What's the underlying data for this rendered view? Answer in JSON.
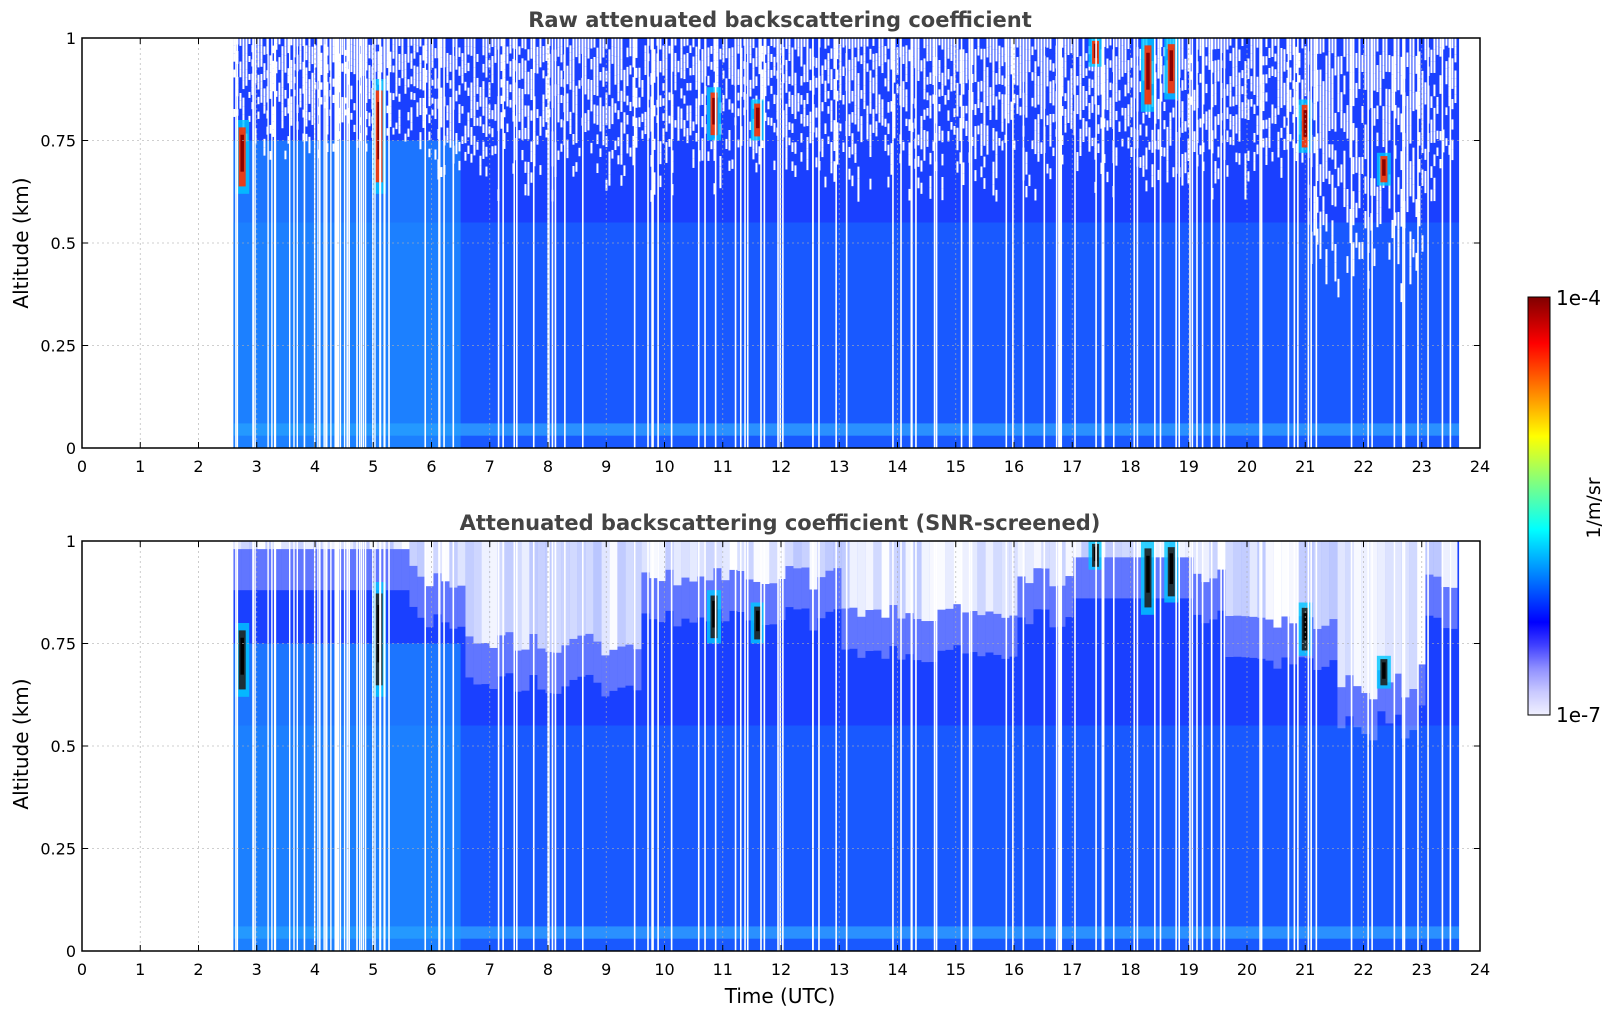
{
  "chart_data": [
    {
      "type": "heatmap",
      "title": "Raw attenuated backscattering coefficient",
      "ylabel": "Altitude (km)",
      "xlabel": "",
      "xlim": [
        0,
        24
      ],
      "ylim": [
        0,
        1
      ],
      "x_ticks": [
        "0",
        "1",
        "2",
        "3",
        "4",
        "5",
        "6",
        "7",
        "8",
        "9",
        "10",
        "11",
        "12",
        "13",
        "14",
        "15",
        "16",
        "17",
        "18",
        "19",
        "20",
        "21",
        "22",
        "23",
        "24"
      ],
      "y_ticks": [
        "0",
        "0.25",
        "0.5",
        "0.75",
        "1"
      ],
      "data_time_range": [
        2.6,
        23.65
      ],
      "grid": true,
      "cloud_features": [
        {
          "t": 2.75,
          "alt_range": [
            0.62,
            0.8
          ]
        },
        {
          "t": 5.1,
          "alt_range": [
            0.62,
            0.9
          ]
        },
        {
          "t": 10.85,
          "alt_range": [
            0.75,
            0.88
          ]
        },
        {
          "t": 11.6,
          "alt_range": [
            0.75,
            0.85
          ]
        },
        {
          "t": 17.4,
          "alt_range": [
            0.93,
            1.0
          ]
        },
        {
          "t": 18.3,
          "alt_range": [
            0.82,
            1.0
          ]
        },
        {
          "t": 18.7,
          "alt_range": [
            0.85,
            1.0
          ]
        },
        {
          "t": 21.0,
          "alt_range": [
            0.72,
            0.85
          ]
        },
        {
          "t": 22.35,
          "alt_range": [
            0.64,
            0.72
          ]
        }
      ]
    },
    {
      "type": "heatmap",
      "title": "Attenuated backscattering coefficient (SNR-screened)",
      "ylabel": "Altitude (km)",
      "xlabel": "Time (UTC)",
      "xlim": [
        0,
        24
      ],
      "ylim": [
        0,
        1
      ],
      "x_ticks": [
        "0",
        "1",
        "2",
        "3",
        "4",
        "5",
        "6",
        "7",
        "8",
        "9",
        "10",
        "11",
        "12",
        "13",
        "14",
        "15",
        "16",
        "17",
        "18",
        "19",
        "20",
        "21",
        "22",
        "23",
        "24"
      ],
      "y_ticks": [
        "0",
        "0.25",
        "0.5",
        "0.75",
        "1"
      ],
      "data_time_range": [
        2.6,
        23.65
      ],
      "grid": true
    }
  ],
  "colorbar": {
    "label": "1/m/sr",
    "max_label": "1e-4",
    "min_label": "1e-7",
    "colors": [
      "#f0f0ff",
      "#c8c8ff",
      "#9090ff",
      "#4040ff",
      "#0000ff",
      "#0040ff",
      "#0080ff",
      "#00c0ff",
      "#00ffff",
      "#40ffc0",
      "#80ff80",
      "#c0ff40",
      "#ffff00",
      "#ffc000",
      "#ff8000",
      "#ff4000",
      "#ff0000",
      "#c00000",
      "#800000"
    ]
  }
}
